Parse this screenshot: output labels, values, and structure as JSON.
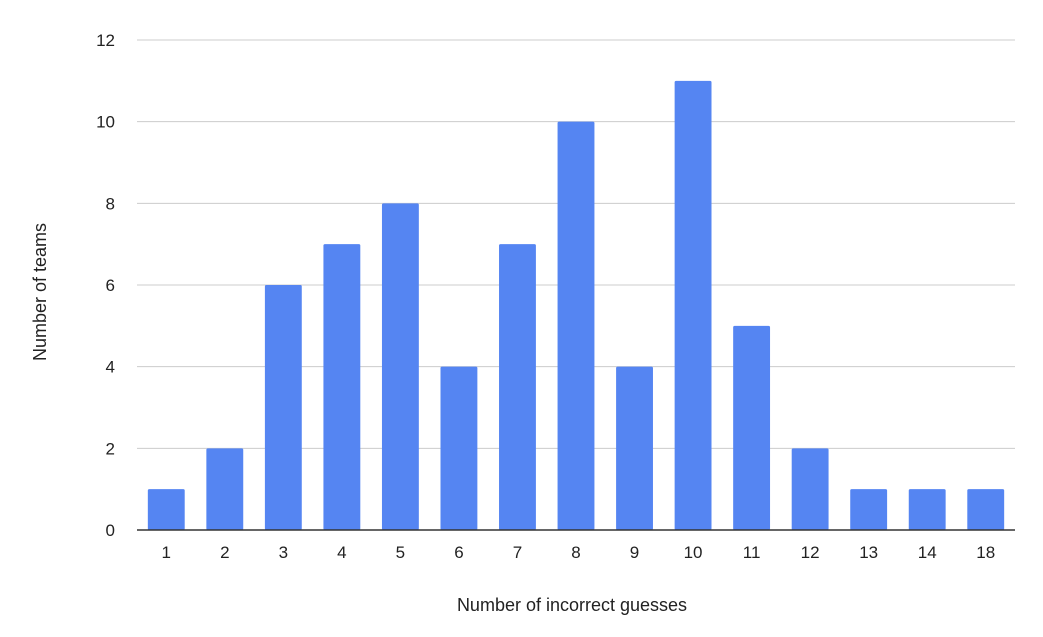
{
  "chart_data": {
    "type": "bar",
    "title": "",
    "xlabel": "Number of incorrect guesses",
    "ylabel": "Number of teams",
    "categories": [
      "1",
      "2",
      "3",
      "4",
      "5",
      "6",
      "7",
      "8",
      "9",
      "10",
      "11",
      "12",
      "13",
      "14",
      "18"
    ],
    "values": [
      1,
      2,
      6,
      7,
      8,
      4,
      7,
      10,
      4,
      11,
      5,
      2,
      1,
      1,
      1
    ],
    "ylim": [
      0,
      12
    ],
    "yticks": [
      0,
      2,
      4,
      6,
      8,
      10,
      12
    ],
    "grid": true,
    "legend": "none",
    "colors": {
      "bar": "#5585F2",
      "grid": "#CCCCCC",
      "axis": "#333333"
    }
  }
}
